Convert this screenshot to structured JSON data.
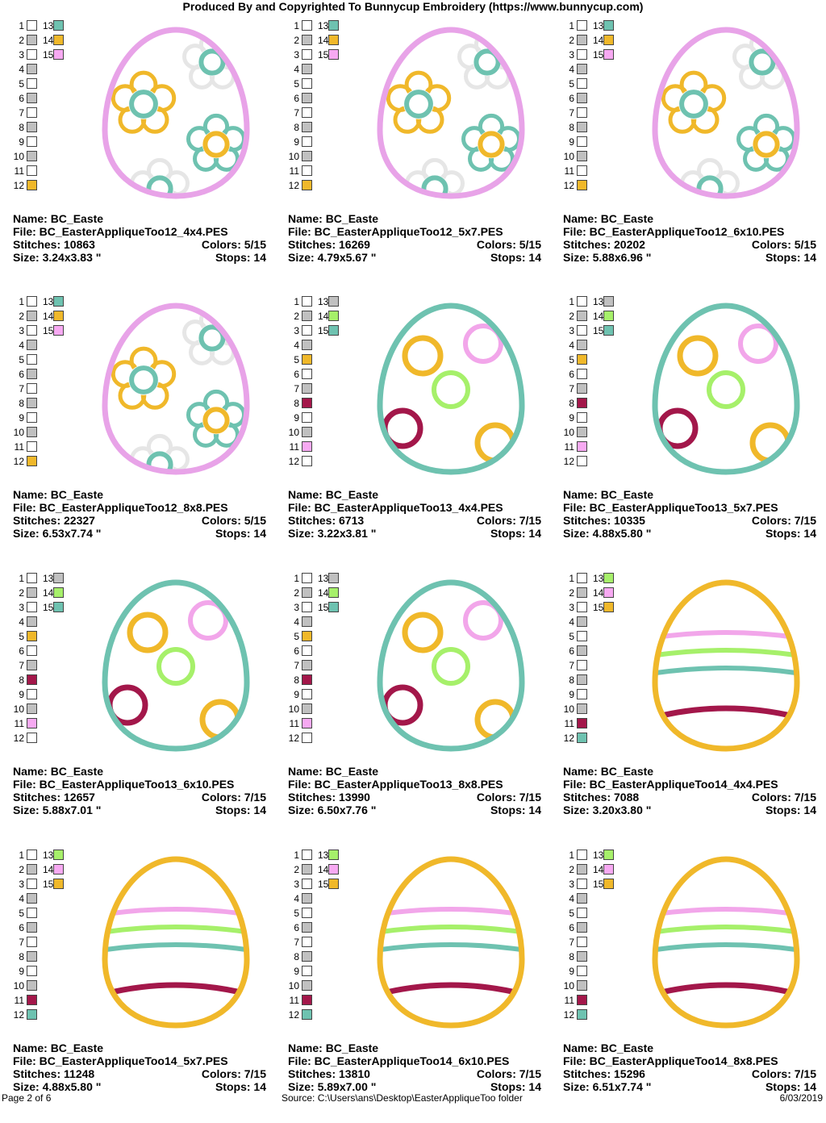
{
  "header": "Produced By and Copyrighted To Bunnycup Embroidery (https://www.bunnycup.com)",
  "labels": {
    "name": "Name:",
    "file": "File:",
    "stitches": "Stitches:",
    "size": "Size:",
    "colors": "Colors:",
    "stops": "Stops:"
  },
  "palettes": {
    "p12": [
      "#ffffff",
      "#c0c0c0",
      "#ffffff",
      "#c0c0c0",
      "#ffffff",
      "#c0c0c0",
      "#ffffff",
      "#c0c0c0",
      "#ffffff",
      "#c0c0c0",
      "#ffffff",
      "#f0b82a",
      "#6ec2b0",
      "#f0b82a",
      "#f7a9f2"
    ],
    "p13": [
      "#ffffff",
      "#c0c0c0",
      "#ffffff",
      "#c0c0c0",
      "#f0b82a",
      "#ffffff",
      "#c0c0c0",
      "#a3174a",
      "#ffffff",
      "#c0c0c0",
      "#f7a9f2",
      "#ffffff",
      "#c0c0c0",
      "#a6f06a",
      "#6ec2b0"
    ],
    "p14": [
      "#ffffff",
      "#c0c0c0",
      "#ffffff",
      "#c0c0c0",
      "#ffffff",
      "#c0c0c0",
      "#ffffff",
      "#c0c0c0",
      "#ffffff",
      "#c0c0c0",
      "#a3174a",
      "#6ec2b0",
      "#a6f06a",
      "#f7a9f2",
      "#f0b82a"
    ]
  },
  "designs": [
    {
      "design": "d12",
      "palette": "p12",
      "name": "BC_Easte",
      "file": "BC_EasterAppliqueToo12_4x4.PES",
      "stitches": "10863",
      "colors": "5/15",
      "size": "3.24x3.83 \"",
      "stops": "14"
    },
    {
      "design": "d12",
      "palette": "p12",
      "name": "BC_Easte",
      "file": "BC_EasterAppliqueToo12_5x7.PES",
      "stitches": "16269",
      "colors": "5/15",
      "size": "4.79x5.67 \"",
      "stops": "14"
    },
    {
      "design": "d12",
      "palette": "p12",
      "name": "BC_Easte",
      "file": "BC_EasterAppliqueToo12_6x10.PES",
      "stitches": "20202",
      "colors": "5/15",
      "size": "5.88x6.96 \"",
      "stops": "14"
    },
    {
      "design": "d12",
      "palette": "p12",
      "name": "BC_Easte",
      "file": "BC_EasterAppliqueToo12_8x8.PES",
      "stitches": "22327",
      "colors": "5/15",
      "size": "6.53x7.74 \"",
      "stops": "14"
    },
    {
      "design": "d13",
      "palette": "p13",
      "name": "BC_Easte",
      "file": "BC_EasterAppliqueToo13_4x4.PES",
      "stitches": "6713",
      "colors": "7/15",
      "size": "3.22x3.81 \"",
      "stops": "14"
    },
    {
      "design": "d13",
      "palette": "p13",
      "name": "BC_Easte",
      "file": "BC_EasterAppliqueToo13_5x7.PES",
      "stitches": "10335",
      "colors": "7/15",
      "size": "4.88x5.80 \"",
      "stops": "14"
    },
    {
      "design": "d13",
      "palette": "p13",
      "name": "BC_Easte",
      "file": "BC_EasterAppliqueToo13_6x10.PES",
      "stitches": "12657",
      "colors": "7/15",
      "size": "5.88x7.01 \"",
      "stops": "14"
    },
    {
      "design": "d13",
      "palette": "p13",
      "name": "BC_Easte",
      "file": "BC_EasterAppliqueToo13_8x8.PES",
      "stitches": "13990",
      "colors": "7/15",
      "size": "6.50x7.76 \"",
      "stops": "14"
    },
    {
      "design": "d14",
      "palette": "p14",
      "name": "BC_Easte",
      "file": "BC_EasterAppliqueToo14_4x4.PES",
      "stitches": "7088",
      "colors": "7/15",
      "size": "3.20x3.80 \"",
      "stops": "14"
    },
    {
      "design": "d14",
      "palette": "p14",
      "name": "BC_Easte",
      "file": "BC_EasterAppliqueToo14_5x7.PES",
      "stitches": "11248",
      "colors": "7/15",
      "size": "4.88x5.80 \"",
      "stops": "14"
    },
    {
      "design": "d14",
      "palette": "p14",
      "name": "BC_Easte",
      "file": "BC_EasterAppliqueToo14_6x10.PES",
      "stitches": "13810",
      "colors": "7/15",
      "size": "5.89x7.00 \"",
      "stops": "14"
    },
    {
      "design": "d14",
      "palette": "p14",
      "name": "BC_Easte",
      "file": "BC_EasterAppliqueToo14_8x8.PES",
      "stitches": "15296",
      "colors": "7/15",
      "size": "6.51x7.74 \"",
      "stops": "14"
    }
  ],
  "footer": {
    "page": "Page 2 of 6",
    "source": "Source: C:\\Users\\ans\\Desktop\\EasterAppliqueToo folder",
    "date": "6/03/2019"
  }
}
